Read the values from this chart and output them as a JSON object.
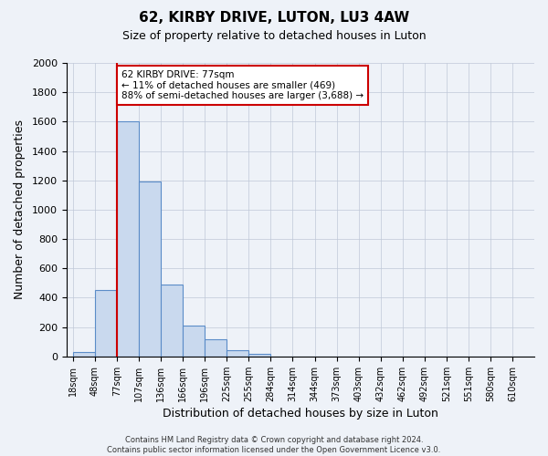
{
  "title": "62, KIRBY DRIVE, LUTON, LU3 4AW",
  "subtitle": "Size of property relative to detached houses in Luton",
  "xlabel": "Distribution of detached houses by size in Luton",
  "ylabel": "Number of detached properties",
  "bin_labels": [
    "18sqm",
    "48sqm",
    "77sqm",
    "107sqm",
    "136sqm",
    "166sqm",
    "196sqm",
    "225sqm",
    "255sqm",
    "284sqm",
    "314sqm",
    "344sqm",
    "373sqm",
    "403sqm",
    "432sqm",
    "462sqm",
    "492sqm",
    "521sqm",
    "551sqm",
    "580sqm",
    "610sqm"
  ],
  "bin_values": [
    30,
    450,
    1600,
    1190,
    490,
    210,
    120,
    45,
    20,
    0,
    0,
    0,
    0,
    0,
    0,
    0,
    0,
    0,
    0,
    0,
    0
  ],
  "bar_color": "#c9d9ee",
  "bar_edge_color": "#5b8cc8",
  "vline_index": 2,
  "marker_label": "62 KIRBY DRIVE: 77sqm",
  "annotation_line1": "← 11% of detached houses are smaller (469)",
  "annotation_line2": "88% of semi-detached houses are larger (3,688) →",
  "annotation_box_color": "#ffffff",
  "annotation_box_edge": "#cc0000",
  "vline_color": "#cc0000",
  "ylim": [
    0,
    2000
  ],
  "yticks": [
    0,
    200,
    400,
    600,
    800,
    1000,
    1200,
    1400,
    1600,
    1800,
    2000
  ],
  "footer1": "Contains HM Land Registry data © Crown copyright and database right 2024.",
  "footer2": "Contains public sector information licensed under the Open Government Licence v3.0.",
  "bg_color": "#eef2f8",
  "plot_bg_color": "#eef2f8"
}
